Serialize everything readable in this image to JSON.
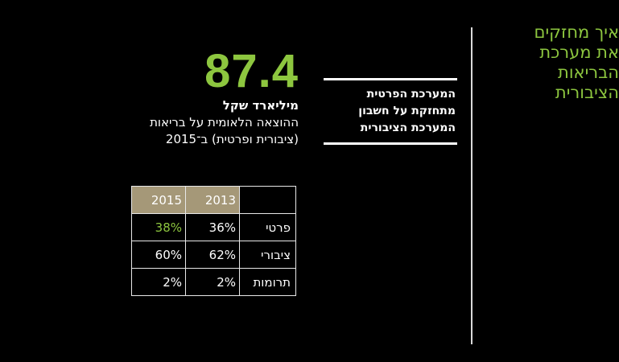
{
  "headline": {
    "lines": [
      "איך מחזקים",
      "את מערכת",
      "הבריאות",
      "הציבורית"
    ]
  },
  "subheading": {
    "lines": [
      "המערכת הפרטית",
      "מתחזקת על חשבון",
      "המערכת הציבורית"
    ]
  },
  "stat": {
    "value": "87.4",
    "unit": "מיליארד שקל",
    "description_lines": [
      "ההוצאה הלאומית על בריאות",
      "(ציבורית ופרטית) ב־2015"
    ]
  },
  "table": {
    "years": [
      "2015",
      "2013"
    ],
    "rows": [
      {
        "label": "פרטי",
        "y2015": "38%",
        "y2013": "36%"
      },
      {
        "label": "ציבורי",
        "y2015": "60%",
        "y2013": "62%"
      },
      {
        "label": "תרומות",
        "y2015": "2%",
        "y2013": "2%"
      }
    ]
  },
  "colors": {
    "accent": "#8dc63f",
    "header_bg": "#a59878",
    "background": "#000000"
  }
}
